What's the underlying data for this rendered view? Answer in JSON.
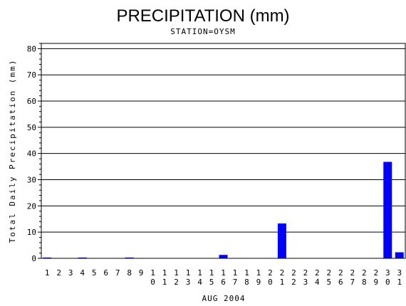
{
  "chart_data": {
    "type": "bar",
    "title": "PRECIPITATION (mm)",
    "subtitle": "STATION=OYSM",
    "xlabel": "AUG 2004",
    "ylabel": "Total Daily Precipitation (mm)",
    "ylim": [
      0,
      82
    ],
    "yticks": [
      0,
      10,
      20,
      30,
      40,
      50,
      60,
      70,
      80
    ],
    "grid": true,
    "bar_color": "#0000ff",
    "categories": [
      "1",
      "2",
      "3",
      "4",
      "5",
      "6",
      "7",
      "8",
      "9",
      "10",
      "11",
      "12",
      "13",
      "14",
      "15",
      "16",
      "17",
      "18",
      "19",
      "20",
      "21",
      "22",
      "23",
      "24",
      "25",
      "26",
      "27",
      "28",
      "29",
      "30",
      "31"
    ],
    "values": [
      0.3,
      0,
      0,
      0.3,
      0,
      0,
      0,
      0.3,
      0,
      0,
      0,
      0,
      0,
      0,
      0,
      1.3,
      0,
      0,
      0,
      0,
      13.3,
      0,
      0,
      0,
      0,
      0,
      0,
      0,
      0,
      36.8,
      2.3
    ]
  }
}
